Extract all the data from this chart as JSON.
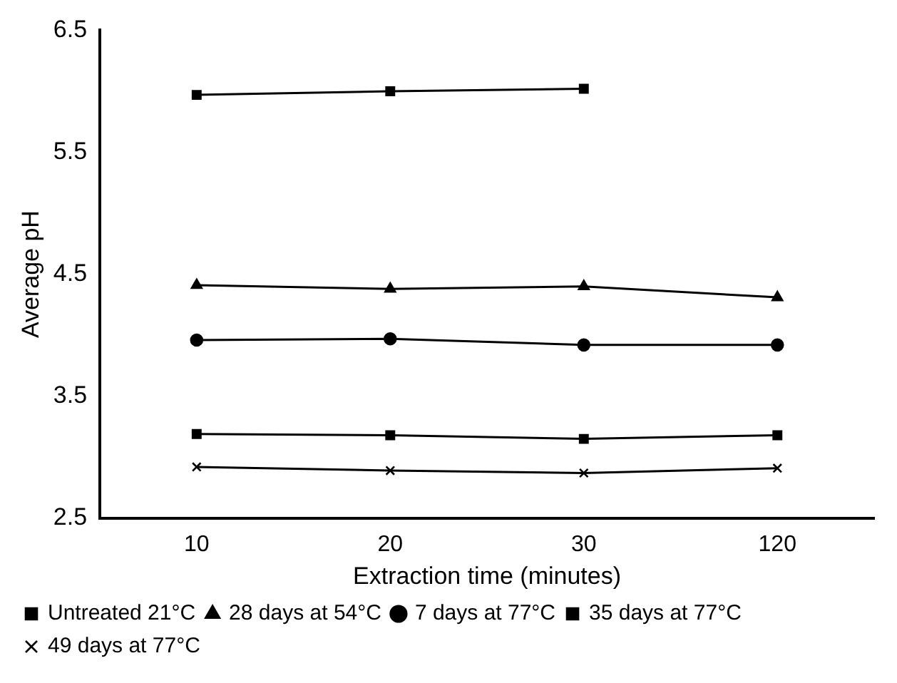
{
  "chart_data": {
    "type": "line",
    "xlabel": "Extraction time (minutes)",
    "ylabel": "Average pH",
    "categories": [
      "10",
      "20",
      "30",
      "120"
    ],
    "ylim": [
      2.5,
      6.5
    ],
    "yticks": [
      2.5,
      3.5,
      4.5,
      5.5,
      6.5
    ],
    "grid": false,
    "legend": "bottom",
    "line_style": "solid",
    "series": [
      {
        "name": "Untreated 21°C",
        "color": "#000000",
        "marker": "square",
        "values": [
          5.97,
          6.0,
          6.02,
          null
        ]
      },
      {
        "name": "28 days at 54°C",
        "color": "#000000",
        "marker": "triangle",
        "values": [
          4.41,
          4.38,
          4.4,
          4.31
        ]
      },
      {
        "name": "7 days at 77°C",
        "color": "#000000",
        "marker": "circle",
        "values": [
          3.96,
          3.97,
          3.92,
          3.92
        ]
      },
      {
        "name": "35 days at 77°C",
        "color": "#000000",
        "marker": "square",
        "values": [
          3.19,
          3.18,
          3.15,
          3.18
        ]
      },
      {
        "name": "49 days at 77°C",
        "color": "#000000",
        "marker": "cross",
        "values": [
          2.92,
          2.89,
          2.87,
          2.91
        ]
      }
    ]
  }
}
